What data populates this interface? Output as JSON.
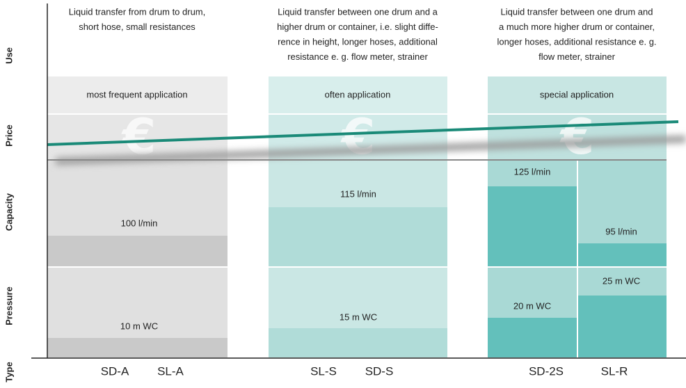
{
  "rows": [
    "Use",
    "Price",
    "Capacity",
    "Pressure",
    "Type"
  ],
  "columns": [
    {
      "use": [
        "Liquid transfer from drum to drum,",
        "short hose, small resistances"
      ],
      "application": "most frequent application",
      "capacity": [
        "100 l/min"
      ],
      "pressure": [
        "10 m WC"
      ],
      "types": [
        "SD-A",
        "SL-A"
      ]
    },
    {
      "use": [
        "Liquid transfer between one drum and a",
        "higher drum or container, i.e. slight diffe-",
        "rence in height, longer hoses, additional",
        "resistance e. g. flow meter, strainer"
      ],
      "application": "often application",
      "capacity": [
        "115 l/min"
      ],
      "pressure": [
        "15 m WC"
      ],
      "types": [
        "SL-S",
        "SD-S"
      ]
    },
    {
      "use": [
        "Liquid transfer between one drum and",
        "a much more higher drum or container,",
        "longer hoses, additional resistance e. g.",
        "flow meter, strainer"
      ],
      "application": "special application",
      "capacity": [
        "125 l/min",
        "95 l/min"
      ],
      "pressure": [
        "20 m WC",
        "25 m WC"
      ],
      "types": [
        "SD-2S",
        "SL-R"
      ]
    }
  ]
}
